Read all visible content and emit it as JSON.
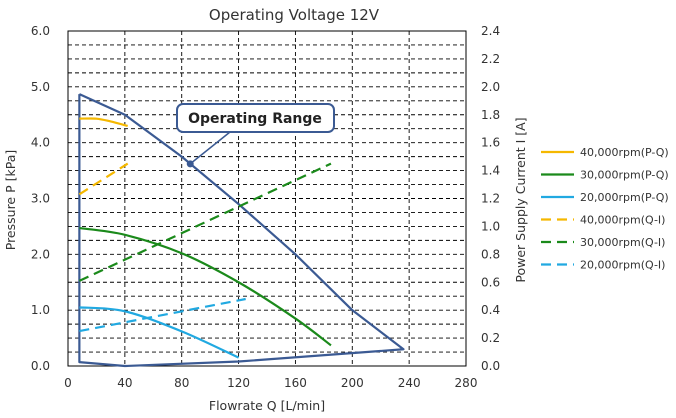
{
  "chart_data": {
    "type": "line",
    "title": "Operating Voltage 12V",
    "xlabel": "Flowrate Q [L/min]",
    "ylabel": "Pressure P [kPa]",
    "y2label": "Power Supply Current I [A]",
    "xlim": [
      0,
      280
    ],
    "ylim": [
      0,
      6
    ],
    "y2lim": [
      0,
      2.4
    ],
    "x_ticks": [
      "0",
      "40",
      "80",
      "120",
      "160",
      "200",
      "240",
      "280"
    ],
    "y_ticks": [
      "0.0",
      "1.0",
      "2.0",
      "3.0",
      "4.0",
      "5.0",
      "6.0"
    ],
    "y2_ticks": [
      "0.0",
      "0.2",
      "0.4",
      "0.6",
      "0.8",
      "1.0",
      "1.2",
      "1.4",
      "1.6",
      "1.8",
      "2.0",
      "2.2",
      "2.4"
    ],
    "grid": true,
    "legend_position": "right",
    "operating_range": {
      "label": "Operating Range",
      "color": "#3b5a93",
      "points": [
        [
          8,
          4.87
        ],
        [
          40,
          4.5
        ],
        [
          80,
          3.75
        ],
        [
          120,
          2.9
        ],
        [
          160,
          2.0
        ],
        [
          200,
          1.0
        ],
        [
          236,
          0.3
        ],
        [
          120,
          0.08
        ],
        [
          40,
          0.0
        ],
        [
          8,
          0.07
        ],
        [
          8,
          4.87
        ]
      ],
      "callout_anchor": [
        86,
        3.62
      ]
    },
    "series": [
      {
        "name": "40,000rpm(P-Q)",
        "axis": "left",
        "style": "solid",
        "color": "#f5b800",
        "x": [
          8,
          20,
          30,
          42
        ],
        "y": [
          4.43,
          4.43,
          4.38,
          4.3
        ]
      },
      {
        "name": "30,000rpm(P-Q)",
        "axis": "left",
        "style": "solid",
        "color": "#1b8a1b",
        "x": [
          8,
          40,
          80,
          120,
          160,
          185
        ],
        "y": [
          2.47,
          2.35,
          2.02,
          1.5,
          0.85,
          0.37
        ]
      },
      {
        "name": "20,000rpm(P-Q)",
        "axis": "left",
        "style": "solid",
        "color": "#21a9e1",
        "x": [
          8,
          40,
          80,
          120
        ],
        "y": [
          1.05,
          0.98,
          0.62,
          0.15
        ]
      },
      {
        "name": "40,000rpm(Q-I)",
        "axis": "right",
        "style": "dashed",
        "color": "#f5b800",
        "x": [
          8,
          42
        ],
        "y": [
          1.23,
          1.45
        ]
      },
      {
        "name": "30,000rpm(Q-I)",
        "axis": "right",
        "style": "dashed",
        "color": "#1b8a1b",
        "x": [
          8,
          185
        ],
        "y": [
          0.61,
          1.45
        ]
      },
      {
        "name": "20,000rpm(Q-I)",
        "axis": "right",
        "style": "dashed",
        "color": "#21a9e1",
        "x": [
          8,
          125
        ],
        "y": [
          0.25,
          0.48
        ]
      }
    ]
  }
}
